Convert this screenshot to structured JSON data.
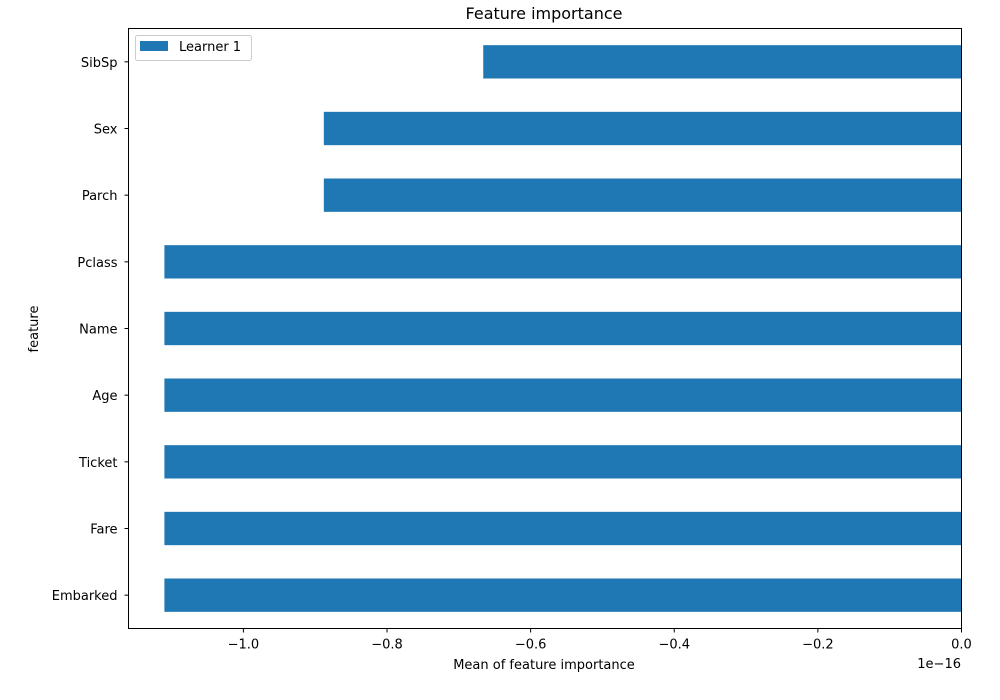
{
  "chart_data": {
    "type": "bar",
    "orientation": "horizontal",
    "title": "Feature importance",
    "xlabel": "Mean of feature importance",
    "ylabel": "feature",
    "x_offset_text": "1e−16",
    "x_scale_factor": 1e-16,
    "xlim": [
      -1.16,
      0.0
    ],
    "xticks": [
      -1.0,
      -0.8,
      -0.6,
      -0.4,
      -0.2,
      0.0
    ],
    "xtick_labels": [
      "−1.0",
      "−0.8",
      "−0.6",
      "−0.4",
      "−0.2",
      "0.0"
    ],
    "grid": false,
    "legend_position": "top-left",
    "categories": [
      "SibSp",
      "Sex",
      "Parch",
      "Pclass",
      "Name",
      "Age",
      "Ticket",
      "Fare",
      "Embarked"
    ],
    "series": [
      {
        "name": "Learner 1",
        "color": "#1f77b4",
        "values": [
          -0.666,
          -0.888,
          -0.888,
          -1.11,
          -1.11,
          -1.11,
          -1.11,
          -1.11,
          -1.11
        ]
      }
    ]
  }
}
